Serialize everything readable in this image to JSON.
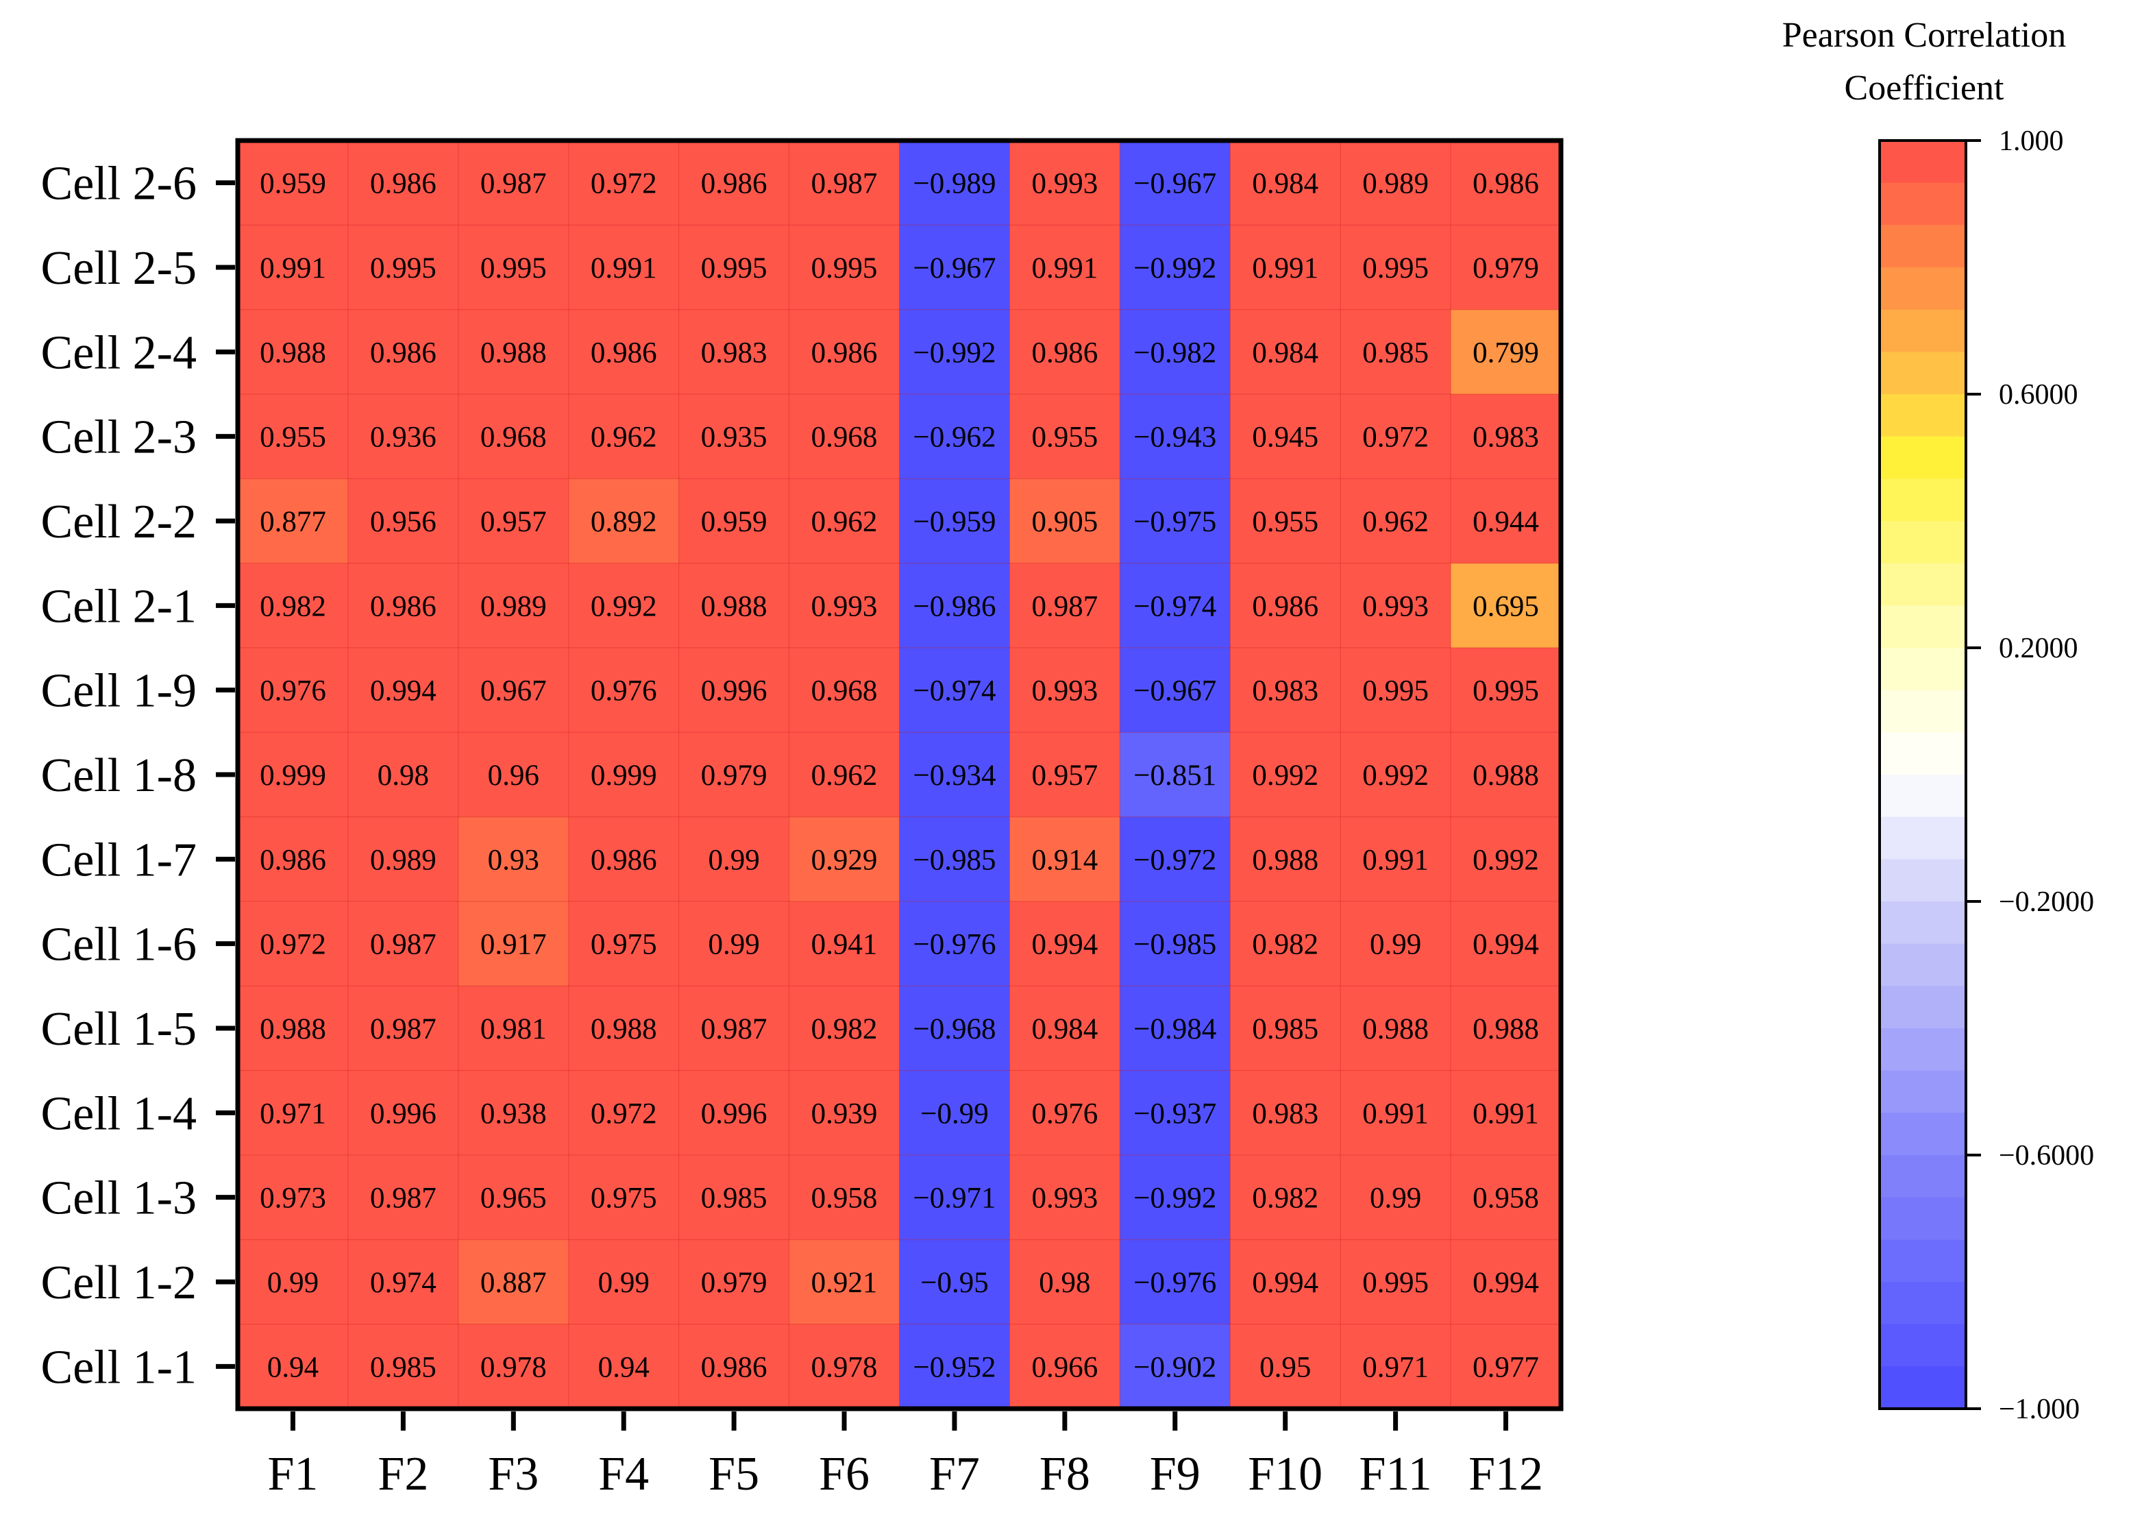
{
  "chart_data": {
    "type": "heatmap",
    "x_categories": [
      "F1",
      "F2",
      "F3",
      "F4",
      "F5",
      "F6",
      "F7",
      "F8",
      "F9",
      "F10",
      "F11",
      "F12"
    ],
    "y_categories": [
      "Cell 2-6",
      "Cell 2-5",
      "Cell 2-4",
      "Cell 2-3",
      "Cell 2-2",
      "Cell 2-1",
      "Cell 1-9",
      "Cell 1-8",
      "Cell 1-7",
      "Cell 1-6",
      "Cell 1-5",
      "Cell 1-4",
      "Cell 1-3",
      "Cell 1-2",
      "Cell 1-1"
    ],
    "values": [
      [
        0.959,
        0.986,
        0.987,
        0.972,
        0.986,
        0.987,
        -0.989,
        0.993,
        -0.967,
        0.984,
        0.989,
        0.986
      ],
      [
        0.991,
        0.995,
        0.995,
        0.991,
        0.995,
        0.995,
        -0.967,
        0.991,
        -0.992,
        0.991,
        0.995,
        0.979
      ],
      [
        0.988,
        0.986,
        0.988,
        0.986,
        0.983,
        0.986,
        -0.992,
        0.986,
        -0.982,
        0.984,
        0.985,
        0.799
      ],
      [
        0.955,
        0.936,
        0.968,
        0.962,
        0.935,
        0.968,
        -0.962,
        0.955,
        -0.943,
        0.945,
        0.972,
        0.983
      ],
      [
        0.877,
        0.956,
        0.957,
        0.892,
        0.959,
        0.962,
        -0.959,
        0.905,
        -0.975,
        0.955,
        0.962,
        0.944
      ],
      [
        0.982,
        0.986,
        0.989,
        0.992,
        0.988,
        0.993,
        -0.986,
        0.987,
        -0.974,
        0.986,
        0.993,
        0.695
      ],
      [
        0.976,
        0.994,
        0.967,
        0.976,
        0.996,
        0.968,
        -0.974,
        0.993,
        -0.967,
        0.983,
        0.995,
        0.995
      ],
      [
        0.999,
        0.98,
        0.96,
        0.999,
        0.979,
        0.962,
        -0.934,
        0.957,
        -0.851,
        0.992,
        0.992,
        0.988
      ],
      [
        0.986,
        0.989,
        0.93,
        0.986,
        0.99,
        0.929,
        -0.985,
        0.914,
        -0.972,
        0.988,
        0.991,
        0.992
      ],
      [
        0.972,
        0.987,
        0.917,
        0.975,
        0.99,
        0.941,
        -0.976,
        0.994,
        -0.985,
        0.982,
        0.99,
        0.994
      ],
      [
        0.988,
        0.987,
        0.981,
        0.988,
        0.987,
        0.982,
        -0.968,
        0.984,
        -0.984,
        0.985,
        0.988,
        0.988
      ],
      [
        0.971,
        0.996,
        0.938,
        0.972,
        0.996,
        0.939,
        -0.99,
        0.976,
        -0.937,
        0.983,
        0.991,
        0.991
      ],
      [
        0.973,
        0.987,
        0.965,
        0.975,
        0.985,
        0.958,
        -0.971,
        0.993,
        -0.992,
        0.982,
        0.99,
        0.958
      ],
      [
        0.99,
        0.974,
        0.887,
        0.99,
        0.979,
        0.921,
        -0.95,
        0.98,
        -0.976,
        0.994,
        0.995,
        0.994
      ],
      [
        0.94,
        0.985,
        0.978,
        0.94,
        0.986,
        0.978,
        -0.952,
        0.966,
        -0.902,
        0.95,
        0.971,
        0.977
      ]
    ],
    "value_labels": [
      [
        "0.959",
        "0.986",
        "0.987",
        "0.972",
        "0.986",
        "0.987",
        "−0.989",
        "0.993",
        "−0.967",
        "0.984",
        "0.989",
        "0.986"
      ],
      [
        "0.991",
        "0.995",
        "0.995",
        "0.991",
        "0.995",
        "0.995",
        "−0.967",
        "0.991",
        "−0.992",
        "0.991",
        "0.995",
        "0.979"
      ],
      [
        "0.988",
        "0.986",
        "0.988",
        "0.986",
        "0.983",
        "0.986",
        "−0.992",
        "0.986",
        "−0.982",
        "0.984",
        "0.985",
        "0.799"
      ],
      [
        "0.955",
        "0.936",
        "0.968",
        "0.962",
        "0.935",
        "0.968",
        "−0.962",
        "0.955",
        "−0.943",
        "0.945",
        "0.972",
        "0.983"
      ],
      [
        "0.877",
        "0.956",
        "0.957",
        "0.892",
        "0.959",
        "0.962",
        "−0.959",
        "0.905",
        "−0.975",
        "0.955",
        "0.962",
        "0.944"
      ],
      [
        "0.982",
        "0.986",
        "0.989",
        "0.992",
        "0.988",
        "0.993",
        "−0.986",
        "0.987",
        "−0.974",
        "0.986",
        "0.993",
        "0.695"
      ],
      [
        "0.976",
        "0.994",
        "0.967",
        "0.976",
        "0.996",
        "0.968",
        "−0.974",
        "0.993",
        "−0.967",
        "0.983",
        "0.995",
        "0.995"
      ],
      [
        "0.999",
        "0.98",
        "0.96",
        "0.999",
        "0.979",
        "0.962",
        "−0.934",
        "0.957",
        "−0.851",
        "0.992",
        "0.992",
        "0.988"
      ],
      [
        "0.986",
        "0.989",
        "0.93",
        "0.986",
        "0.99",
        "0.929",
        "−0.985",
        "0.914",
        "−0.972",
        "0.988",
        "0.991",
        "0.992"
      ],
      [
        "0.972",
        "0.987",
        "0.917",
        "0.975",
        "0.99",
        "0.941",
        "−0.976",
        "0.994",
        "−0.985",
        "0.982",
        "0.99",
        "0.994"
      ],
      [
        "0.988",
        "0.987",
        "0.981",
        "0.988",
        "0.987",
        "0.982",
        "−0.968",
        "0.984",
        "−0.984",
        "0.985",
        "0.988",
        "0.988"
      ],
      [
        "0.971",
        "0.996",
        "0.938",
        "0.972",
        "0.996",
        "0.939",
        "−0.99",
        "0.976",
        "−0.937",
        "0.983",
        "0.991",
        "0.991"
      ],
      [
        "0.973",
        "0.987",
        "0.965",
        "0.975",
        "0.985",
        "0.958",
        "−0.971",
        "0.993",
        "−0.992",
        "0.982",
        "0.99",
        "0.958"
      ],
      [
        "0.99",
        "0.974",
        "0.887",
        "0.99",
        "0.979",
        "0.921",
        "−0.95",
        "0.98",
        "−0.976",
        "0.994",
        "0.995",
        "0.994"
      ],
      [
        "0.94",
        "0.985",
        "0.978",
        "0.94",
        "0.986",
        "0.978",
        "−0.952",
        "0.966",
        "−0.902",
        "0.95",
        "0.971",
        "0.977"
      ]
    ],
    "colorbar": {
      "title_lines": [
        "Pearson Correlation",
        "Coefficient"
      ],
      "range": [
        -1.0,
        1.0
      ],
      "steps": 30,
      "ticks": [
        1.0,
        0.6,
        0.2,
        -0.2,
        -0.6,
        -1.0
      ],
      "tick_labels": [
        "1.000",
        "0.6000",
        "0.2000",
        "−0.2000",
        "−0.6000",
        "−1.000"
      ],
      "color_stops": [
        {
          "value": -1.0,
          "color": "#4b4bff"
        },
        {
          "value": -0.6,
          "color": "#8585fb"
        },
        {
          "value": -0.2,
          "color": "#d0d0fa"
        },
        {
          "value": 0.0,
          "color": "#ffffff"
        },
        {
          "value": 0.2,
          "color": "#ffffc2"
        },
        {
          "value": 0.5,
          "color": "#fff13a"
        },
        {
          "value": 0.6,
          "color": "#ffcc46"
        },
        {
          "value": 0.8,
          "color": "#ff8a46"
        },
        {
          "value": 1.0,
          "color": "#ff4b4b"
        }
      ]
    },
    "grid": false,
    "legend": "right"
  }
}
